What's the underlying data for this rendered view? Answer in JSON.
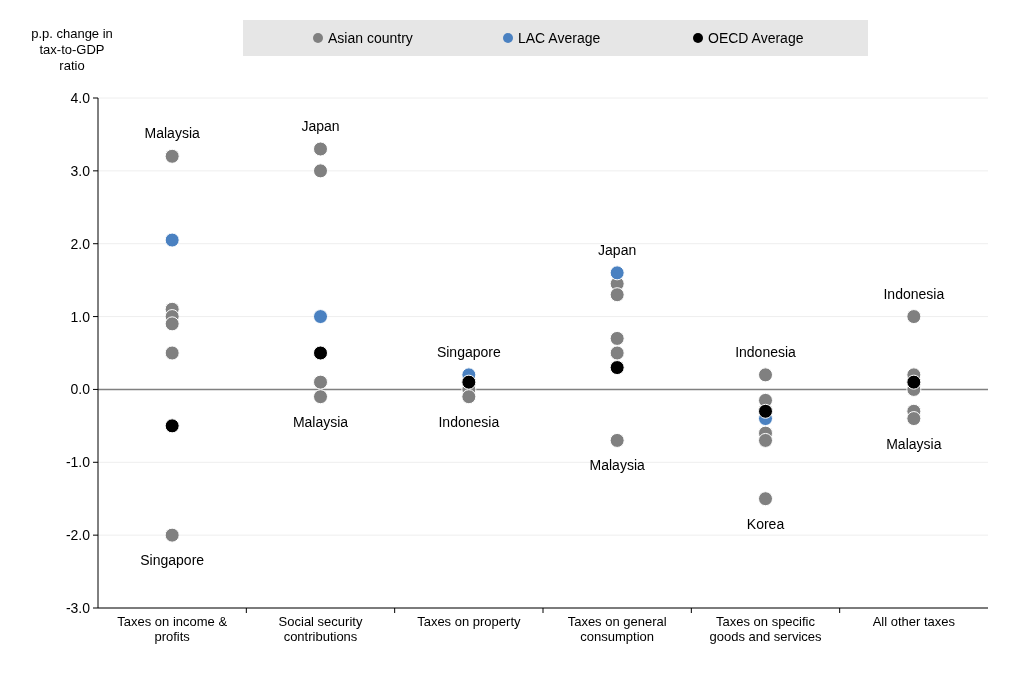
{
  "chart_data": {
    "type": "scatter",
    "ylabel": "p.p. change in tax-to-GDP ratio",
    "categories": [
      "Taxes on income & profits",
      "Social security contributions",
      "Taxes on property",
      "Taxes on general consumption",
      "Taxes on specific goods and services",
      "All other taxes"
    ],
    "series": [
      {
        "name": "Asian country",
        "color": "#808080",
        "x": [
          "Taxes on income & profits",
          "Taxes on income & profits",
          "Taxes on income & profits",
          "Taxes on income & profits",
          "Taxes on income & profits",
          "Taxes on income & profits",
          "Social security contributions",
          "Social security contributions",
          "Social security contributions",
          "Social security contributions",
          "Taxes on property",
          "Taxes on property",
          "Taxes on general consumption",
          "Taxes on general consumption",
          "Taxes on general consumption",
          "Taxes on general consumption",
          "Taxes on general consumption",
          "Taxes on specific goods and services",
          "Taxes on specific goods and services",
          "Taxes on specific goods and services",
          "Taxes on specific goods and services",
          "Taxes on specific goods and services",
          "All other taxes",
          "All other taxes",
          "All other taxes",
          "All other taxes",
          "All other taxes"
        ],
        "values": [
          3.2,
          1.1,
          1.0,
          0.9,
          0.5,
          -2.0,
          3.3,
          3.0,
          0.1,
          -0.1,
          0.0,
          -0.1,
          1.45,
          1.3,
          0.7,
          0.5,
          -0.7,
          0.2,
          -0.15,
          -0.6,
          -0.7,
          -1.5,
          1.0,
          0.2,
          0.0,
          -0.3,
          -0.4
        ]
      },
      {
        "name": "LAC Average",
        "color": "#4a81c1",
        "values": [
          2.05,
          1.0,
          0.2,
          1.6,
          -0.4,
          null
        ]
      },
      {
        "name": "OECD Average",
        "color": "#000000",
        "values": [
          -0.5,
          0.5,
          0.1,
          0.3,
          -0.3,
          0.1
        ]
      }
    ],
    "ylim": [
      -3,
      4
    ],
    "yticks": [
      {
        "value": -3,
        "label": "-3.0"
      },
      {
        "value": -2,
        "label": "-2.0"
      },
      {
        "value": -1,
        "label": "-1.0"
      },
      {
        "value": 0,
        "label": "0.0"
      },
      {
        "value": 1,
        "label": "1.0"
      },
      {
        "value": 2,
        "label": "2.0"
      },
      {
        "value": 3,
        "label": "3.0"
      },
      {
        "value": 4,
        "label": "4.0"
      }
    ],
    "grid": "y",
    "legend": "top",
    "marker": "circle",
    "ref_lines": [
      {
        "axis": "y",
        "value": 0,
        "color": "#808080"
      }
    ],
    "annotations": [
      {
        "text": "Malaysia",
        "x": "Taxes on income & profits",
        "y": 3.2
      },
      {
        "text": "Singapore",
        "x": "Taxes on income & profits",
        "y": -2.0
      },
      {
        "text": "Japan",
        "x": "Social security contributions",
        "y": 3.3
      },
      {
        "text": "Malaysia",
        "x": "Social security contributions",
        "y": -0.1
      },
      {
        "text": "Singapore",
        "x": "Taxes on property",
        "y": 0.2
      },
      {
        "text": "Indonesia",
        "x": "Taxes on property",
        "y": -0.1
      },
      {
        "text": "Japan",
        "x": "Taxes on general consumption",
        "y": 1.6
      },
      {
        "text": "Malaysia",
        "x": "Taxes on general consumption",
        "y": -0.7
      },
      {
        "text": "Indonesia",
        "x": "Taxes on specific goods and services",
        "y": 0.2
      },
      {
        "text": "Korea",
        "x": "Taxes on specific goods and services",
        "y": -1.5
      },
      {
        "text": "Indonesia",
        "x": "All other taxes",
        "y": 1.0
      },
      {
        "text": "Malaysia",
        "x": "All other taxes",
        "y": -0.4
      }
    ]
  }
}
